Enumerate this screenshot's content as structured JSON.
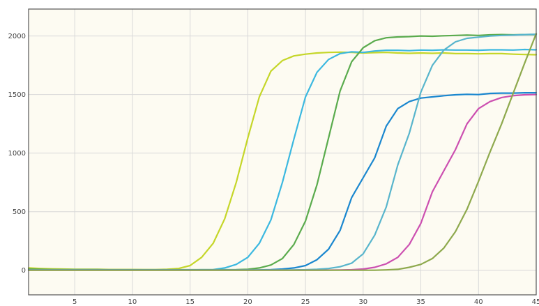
{
  "chart_data": {
    "type": "line",
    "title": "",
    "xlabel": "",
    "ylabel": "",
    "xlim": [
      1,
      45
    ],
    "ylim": [
      -210,
      2230
    ],
    "grid": true,
    "legend": "none",
    "x_ticks": [
      5,
      10,
      15,
      20,
      25,
      30,
      35,
      40,
      45
    ],
    "y_ticks": [
      0,
      500,
      1000,
      1500,
      2000
    ],
    "colors": {
      "plot_background": "#fdfbf2",
      "grid": "#d8d8d8",
      "frame": "#555555"
    },
    "series": [
      {
        "color": "#c5d629",
        "x": [
          1,
          2,
          3,
          4,
          5,
          6,
          7,
          8,
          9,
          10,
          11,
          12,
          13,
          14,
          15,
          16,
          17,
          18,
          19,
          20,
          21,
          22,
          23,
          24,
          25,
          26,
          27,
          28,
          29,
          30,
          31,
          32,
          33,
          34,
          35,
          36,
          37,
          38,
          39,
          40,
          41,
          42,
          43,
          44,
          45
        ],
        "y": [
          20,
          15,
          12,
          10,
          8,
          8,
          8,
          6,
          6,
          6,
          5,
          5,
          8,
          15,
          40,
          110,
          230,
          440,
          750,
          1130,
          1480,
          1700,
          1790,
          1830,
          1845,
          1855,
          1860,
          1862,
          1860,
          1855,
          1858,
          1860,
          1855,
          1852,
          1855,
          1852,
          1855,
          1850,
          1850,
          1848,
          1850,
          1850,
          1845,
          1842,
          1840
        ]
      },
      {
        "color": "#3bb8e0",
        "x": [
          1,
          2,
          3,
          4,
          5,
          6,
          7,
          8,
          9,
          10,
          11,
          12,
          13,
          14,
          15,
          16,
          17,
          18,
          19,
          20,
          21,
          22,
          23,
          24,
          25,
          26,
          27,
          28,
          29,
          30,
          31,
          32,
          33,
          34,
          35,
          36,
          37,
          38,
          39,
          40,
          41,
          42,
          43,
          44,
          45
        ],
        "y": [
          5,
          5,
          4,
          4,
          4,
          4,
          4,
          3,
          3,
          3,
          3,
          3,
          3,
          3,
          3,
          4,
          5,
          20,
          50,
          110,
          230,
          430,
          750,
          1120,
          1480,
          1690,
          1800,
          1850,
          1865,
          1860,
          1872,
          1878,
          1878,
          1875,
          1880,
          1878,
          1882,
          1880,
          1880,
          1878,
          1882,
          1882,
          1880,
          1885,
          1882
        ]
      },
      {
        "color": "#5aab4d",
        "x": [
          1,
          2,
          3,
          4,
          5,
          6,
          7,
          8,
          9,
          10,
          11,
          12,
          13,
          14,
          15,
          16,
          17,
          18,
          19,
          20,
          21,
          22,
          23,
          24,
          25,
          26,
          27,
          28,
          29,
          30,
          31,
          32,
          33,
          34,
          35,
          36,
          37,
          38,
          39,
          40,
          41,
          42,
          43,
          44,
          45
        ],
        "y": [
          10,
          8,
          6,
          5,
          5,
          5,
          5,
          4,
          4,
          4,
          4,
          4,
          4,
          4,
          4,
          4,
          4,
          4,
          5,
          8,
          20,
          45,
          100,
          220,
          420,
          730,
          1130,
          1530,
          1780,
          1900,
          1960,
          1985,
          1992,
          1995,
          2000,
          1998,
          2002,
          2005,
          2008,
          2005,
          2010,
          2012,
          2010,
          2012,
          2012
        ]
      },
      {
        "color": "#1a87cf",
        "x": [
          1,
          2,
          3,
          4,
          5,
          6,
          7,
          8,
          9,
          10,
          11,
          12,
          13,
          14,
          15,
          16,
          17,
          18,
          19,
          20,
          21,
          22,
          23,
          24,
          25,
          26,
          27,
          28,
          29,
          30,
          31,
          32,
          33,
          34,
          35,
          36,
          37,
          38,
          39,
          40,
          41,
          42,
          43,
          44,
          45
        ],
        "y": [
          2,
          2,
          2,
          2,
          2,
          2,
          2,
          2,
          2,
          2,
          2,
          2,
          2,
          2,
          2,
          2,
          2,
          2,
          2,
          2,
          3,
          5,
          10,
          20,
          40,
          90,
          180,
          340,
          620,
          790,
          960,
          1230,
          1380,
          1440,
          1470,
          1480,
          1490,
          1498,
          1502,
          1500,
          1510,
          1512,
          1512,
          1515,
          1515
        ]
      },
      {
        "color": "#58b5cc",
        "x": [
          1,
          2,
          3,
          4,
          5,
          6,
          7,
          8,
          9,
          10,
          11,
          12,
          13,
          14,
          15,
          16,
          17,
          18,
          19,
          20,
          21,
          22,
          23,
          24,
          25,
          26,
          27,
          28,
          29,
          30,
          31,
          32,
          33,
          34,
          35,
          36,
          37,
          38,
          39,
          40,
          41,
          42,
          43,
          44,
          45
        ],
        "y": [
          2,
          2,
          2,
          2,
          2,
          2,
          2,
          2,
          2,
          2,
          2,
          2,
          2,
          2,
          2,
          2,
          2,
          2,
          2,
          2,
          2,
          2,
          2,
          3,
          4,
          8,
          15,
          30,
          60,
          140,
          300,
          540,
          900,
          1170,
          1520,
          1750,
          1880,
          1950,
          1980,
          1990,
          2000,
          2005,
          2008,
          2012,
          2015
        ]
      },
      {
        "color": "#cc4fb0",
        "x": [
          1,
          2,
          3,
          4,
          5,
          6,
          7,
          8,
          9,
          10,
          11,
          12,
          13,
          14,
          15,
          16,
          17,
          18,
          19,
          20,
          21,
          22,
          23,
          24,
          25,
          26,
          27,
          28,
          29,
          30,
          31,
          32,
          33,
          34,
          35,
          36,
          37,
          38,
          39,
          40,
          41,
          42,
          43,
          44,
          45
        ],
        "y": [
          0,
          0,
          0,
          0,
          0,
          0,
          0,
          0,
          0,
          0,
          0,
          0,
          0,
          0,
          0,
          0,
          0,
          0,
          0,
          0,
          0,
          0,
          0,
          0,
          0,
          0,
          1,
          2,
          4,
          10,
          25,
          55,
          110,
          220,
          400,
          670,
          850,
          1030,
          1250,
          1380,
          1440,
          1475,
          1490,
          1498,
          1500
        ]
      },
      {
        "color": "#8ea94d",
        "x": [
          1,
          2,
          3,
          4,
          5,
          6,
          7,
          8,
          9,
          10,
          11,
          12,
          13,
          14,
          15,
          16,
          17,
          18,
          19,
          20,
          21,
          22,
          23,
          24,
          25,
          26,
          27,
          28,
          29,
          30,
          31,
          32,
          33,
          34,
          35,
          36,
          37,
          38,
          39,
          40,
          41,
          42,
          43,
          44,
          45
        ],
        "y": [
          0,
          0,
          0,
          0,
          0,
          0,
          0,
          0,
          0,
          0,
          0,
          0,
          0,
          0,
          0,
          0,
          0,
          0,
          0,
          0,
          0,
          0,
          0,
          0,
          0,
          0,
          0,
          0,
          0,
          0,
          0,
          3,
          8,
          25,
          50,
          100,
          190,
          330,
          520,
          760,
          1010,
          1250,
          1510,
          1770,
          2020
        ]
      }
    ]
  }
}
